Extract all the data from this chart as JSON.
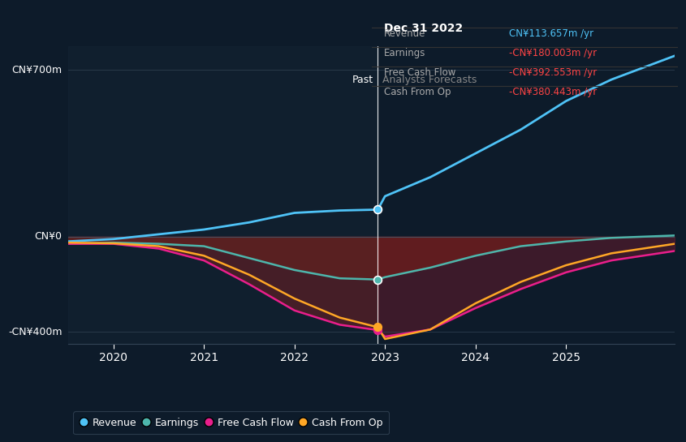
{
  "bg_color": "#0d1b2a",
  "plot_bg_color": "#0d1b2a",
  "title": "Dec 31 2022",
  "ylabel_700": "CN¥700m",
  "ylabel_0": "CN¥0",
  "ylabel_neg400": "-CN¥400m",
  "past_label": "Past",
  "forecast_label": "Analysts Forecasts",
  "tooltip": {
    "date": "Dec 31 2022",
    "revenue_label": "Revenue",
    "revenue_val": "CN¥113.657m /yr",
    "earnings_label": "Earnings",
    "earnings_val": "-CN¥180.003m /yr",
    "fcf_label": "Free Cash Flow",
    "fcf_val": "-CN¥392.553m /yr",
    "cashop_label": "Cash From Op",
    "cashop_val": "-CN¥380.443m /yr"
  },
  "divider_x": 2022.92,
  "highlight_x": 2022.92,
  "ylim": [
    -450,
    800
  ],
  "xlim": [
    2019.5,
    2026.2
  ],
  "xticks": [
    2020,
    2021,
    2022,
    2023,
    2024,
    2025
  ],
  "revenue_color": "#4fc3f7",
  "earnings_color": "#4db6ac",
  "fcf_color": "#e91e8c",
  "cashop_color": "#ffa726",
  "legend_items": [
    "Revenue",
    "Earnings",
    "Free Cash Flow",
    "Cash From Op"
  ],
  "revenue": {
    "x": [
      2019.5,
      2020,
      2020.5,
      2021,
      2021.5,
      2022,
      2022.5,
      2022.92,
      2023,
      2023.5,
      2024,
      2024.5,
      2025,
      2025.5,
      2026.2
    ],
    "y": [
      -20,
      -10,
      10,
      30,
      60,
      100,
      110,
      113.657,
      170,
      250,
      350,
      450,
      570,
      660,
      760
    ]
  },
  "earnings": {
    "x": [
      2019.5,
      2020,
      2020.5,
      2021,
      2021.5,
      2022,
      2022.5,
      2022.92,
      2023,
      2023.5,
      2024,
      2024.5,
      2025,
      2025.5,
      2026.2
    ],
    "y": [
      -30,
      -25,
      -30,
      -40,
      -90,
      -140,
      -175,
      -180.003,
      -170,
      -130,
      -80,
      -40,
      -20,
      -5,
      5
    ]
  },
  "fcf": {
    "x": [
      2019.5,
      2020,
      2020.5,
      2021,
      2021.5,
      2022,
      2022.5,
      2022.92,
      2023,
      2023.5,
      2024,
      2024.5,
      2025,
      2025.5,
      2026.2
    ],
    "y": [
      -30,
      -30,
      -50,
      -100,
      -200,
      -310,
      -370,
      -392.553,
      -420,
      -390,
      -300,
      -220,
      -150,
      -100,
      -60
    ]
  },
  "cashop": {
    "x": [
      2019.5,
      2020,
      2020.5,
      2021,
      2021.5,
      2022,
      2022.5,
      2022.92,
      2023,
      2023.5,
      2024,
      2024.5,
      2025,
      2025.5,
      2026.2
    ],
    "y": [
      -25,
      -28,
      -40,
      -80,
      -160,
      -260,
      -340,
      -380.443,
      -430,
      -390,
      -280,
      -190,
      -120,
      -70,
      -30
    ]
  }
}
